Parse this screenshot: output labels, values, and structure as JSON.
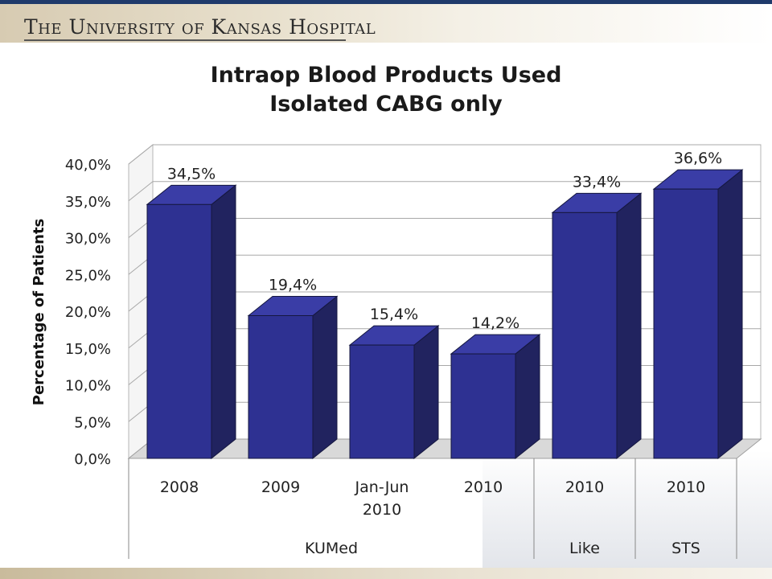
{
  "header": {
    "institution": "The University of Kansas Hospital"
  },
  "chart_data": {
    "type": "bar",
    "title": "Intraop Blood Products Used",
    "subtitle": "Isolated CABG only",
    "ylabel": "Percentage of Patients",
    "ylim": [
      0,
      40
    ],
    "yticks": [
      "0,0%",
      "5,0%",
      "10,0%",
      "15,0%",
      "20,0%",
      "25,0%",
      "30,0%",
      "35,0%",
      "40,0%"
    ],
    "categories": [
      [
        "2008"
      ],
      [
        "2009"
      ],
      [
        "Jan-Jun",
        "2010"
      ],
      [
        "2010"
      ],
      [
        "2010"
      ],
      [
        "2010"
      ]
    ],
    "values": [
      34.5,
      19.4,
      15.4,
      14.2,
      33.4,
      36.6
    ],
    "data_labels": [
      "34,5%",
      "19,4%",
      "15,4%",
      "14,2%",
      "33,4%",
      "36,6%"
    ],
    "groups": [
      {
        "label": "KUMed",
        "count": 4
      },
      {
        "label": "Like",
        "count": 1
      },
      {
        "label": "STS",
        "count": 1
      }
    ],
    "bar_color": "#2e3192",
    "bar_side_color": "#21235f",
    "bar_top_color": "#3a3da6",
    "grid": true
  }
}
